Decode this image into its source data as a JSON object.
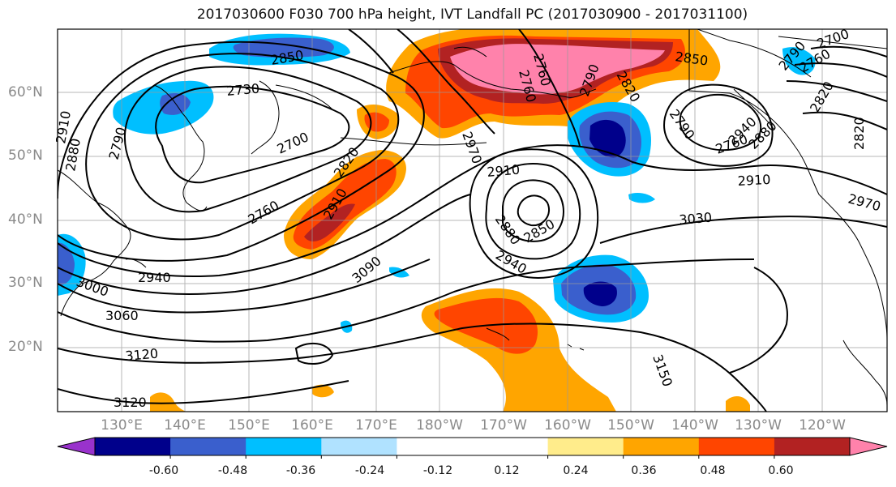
{
  "title": "2017030600 F030 700 hPa height, IVT Landfall PC (2017030900 - 2017031100)",
  "lat_labels": [
    "60°N",
    "50°N",
    "40°N",
    "30°N",
    "20°N"
  ],
  "lon_labels": [
    "130°E",
    "140°E",
    "150°E",
    "160°E",
    "170°E",
    "180°W",
    "170°W",
    "160°W",
    "150°W",
    "140°W",
    "130°W",
    "120°W"
  ],
  "colorbar": {
    "colors": [
      "#9932cc",
      "#00008b",
      "#3a5fcd",
      "#00bfff",
      "#b0e2ff",
      "#ffffff",
      "#ffffff",
      "#ffec8b",
      "#ffa500",
      "#ff4500",
      "#b22222",
      "#ff82ab"
    ],
    "tick_labels": [
      "-0.60",
      "-0.48",
      "-0.36",
      "-0.24",
      "-0.12",
      "0.12",
      "0.24",
      "0.36",
      "0.48",
      "0.60"
    ]
  },
  "contour_labels": [
    "2850",
    "2730",
    "2910",
    "2790",
    "2880",
    "2700",
    "2820",
    "2760",
    "2910",
    "2970",
    "2940",
    "2880",
    "2850",
    "3030",
    "3000",
    "2940",
    "3060",
    "3090",
    "3120",
    "3120",
    "3150",
    "2790",
    "2760",
    "2820",
    "2820",
    "2700",
    "2760",
    "2790",
    "2910",
    "2970",
    "2850",
    "2910",
    "2820",
    "2760",
    "2790",
    "2760",
    "2940",
    "2880"
  ]
}
